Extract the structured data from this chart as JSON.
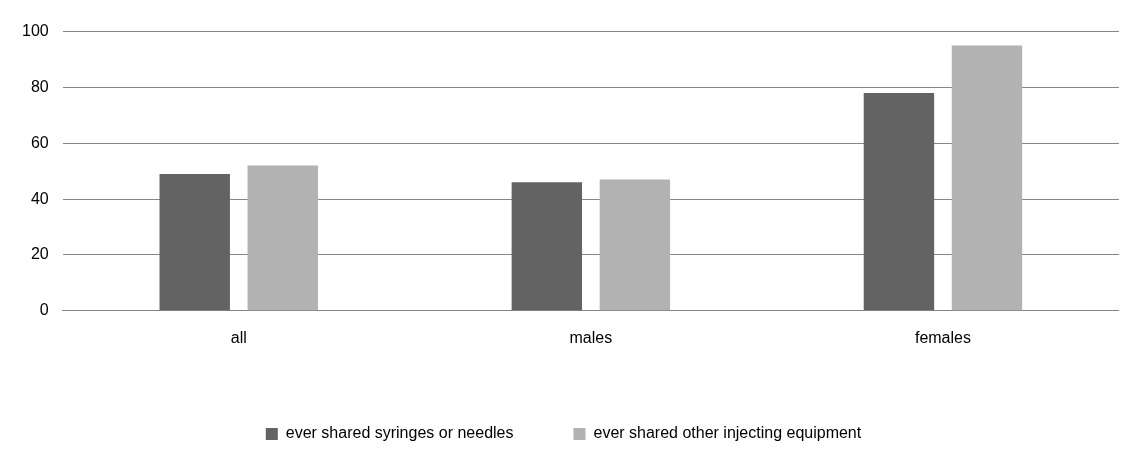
{
  "chart_data": {
    "type": "bar",
    "categories": [
      "all",
      "males",
      "females"
    ],
    "series": [
      {
        "name": "ever shared syringes or needles",
        "color": "#636363",
        "values": [
          49,
          46,
          78
        ]
      },
      {
        "name": "ever shared other injecting equipment",
        "color": "#b2b2b2",
        "values": [
          52,
          47,
          95
        ]
      }
    ],
    "ylim": [
      0,
      100
    ],
    "yticks": [
      0,
      20,
      40,
      60,
      80,
      100
    ],
    "grid": "y",
    "legend": "bottom"
  }
}
